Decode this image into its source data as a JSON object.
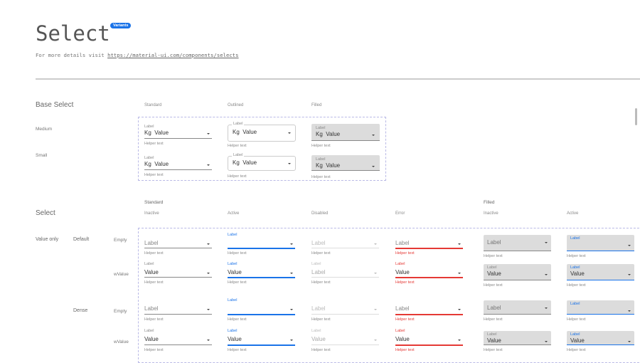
{
  "header": {
    "title": "Select",
    "badge": "Variants",
    "subtitle_prefix": "For more details visit",
    "link": "https://material-ui.com/components/selects"
  },
  "colors": {
    "accent": "#1a73e8",
    "error": "#e53935",
    "filled_bg": "#dcdcdc",
    "dashed_border": "#b9b9e6"
  },
  "base": {
    "title": "Base Select",
    "columns": [
      "Standard",
      "Outlined",
      "Filled"
    ],
    "rows": [
      "Medium",
      "Small"
    ],
    "field": {
      "label": "Label",
      "prefix": "Kg",
      "value": "Value",
      "helper": "Helper text"
    }
  },
  "select": {
    "title": "Select",
    "group_standard": "Standard",
    "group_filled": "Filled",
    "columns": [
      "Inactive",
      "Active",
      "Disabled",
      "Error",
      "Inactive",
      "Active"
    ],
    "group_label": "Value only",
    "densities": [
      "Default",
      "Dense"
    ],
    "row_labels": [
      "Empty",
      "wValue"
    ],
    "label": "Label",
    "value": "Value",
    "helper": "Helper text",
    "disabled_default_value": "Label"
  }
}
